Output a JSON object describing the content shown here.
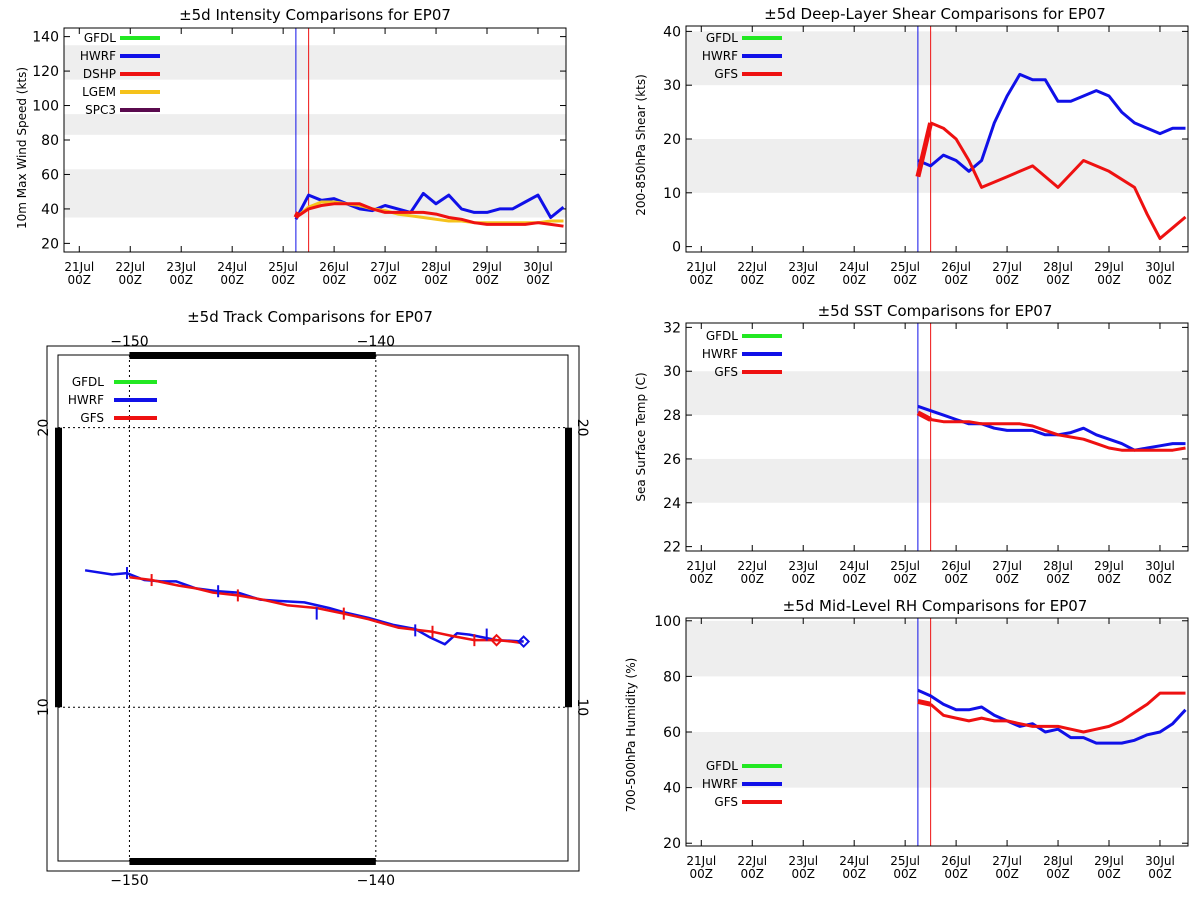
{
  "colors": {
    "gfdl": "#22e822",
    "hwrf": "#1010e8",
    "red": "#ee1111",
    "lgem": "#f5c21b",
    "spc3": "#5a0a4e",
    "band": "#eeeeee"
  },
  "time_axis": {
    "ticks": [
      {
        "day": "21Jul",
        "hour": "00Z",
        "t": 0
      },
      {
        "day": "22Jul",
        "hour": "00Z",
        "t": 1
      },
      {
        "day": "23Jul",
        "hour": "00Z",
        "t": 2
      },
      {
        "day": "24Jul",
        "hour": "00Z",
        "t": 3
      },
      {
        "day": "25Jul",
        "hour": "00Z",
        "t": 4
      },
      {
        "day": "26Jul",
        "hour": "00Z",
        "t": 5
      },
      {
        "day": "27Jul",
        "hour": "00Z",
        "t": 6
      },
      {
        "day": "28Jul",
        "hour": "00Z",
        "t": 7
      },
      {
        "day": "29Jul",
        "hour": "00Z",
        "t": 8
      },
      {
        "day": "30Jul",
        "hour": "00Z",
        "t": 9
      }
    ],
    "t_min": -0.3,
    "t_max": 9.55,
    "init_time": 4.25,
    "current_time": 4.5
  },
  "chart_data": [
    {
      "id": "intensity",
      "type": "line",
      "title": "±5d Intensity Comparisons for EP07",
      "ylabel": "10m Max Wind Speed (kts)",
      "ylim": [
        15,
        145
      ],
      "yticks": [
        20,
        40,
        60,
        80,
        100,
        120,
        140
      ],
      "bands": [
        [
          35,
          63
        ],
        [
          83,
          95
        ],
        [
          115,
          135
        ]
      ],
      "legend": [
        "GFDL",
        "HWRF",
        "DSHP",
        "LGEM",
        "SPC3"
      ],
      "series": [
        {
          "name": "GFDL",
          "color": "gfdl",
          "t": [],
          "y": []
        },
        {
          "name": "HWRF",
          "color": "hwrf",
          "t": [
            4.25,
            4.5,
            4.75,
            5.0,
            5.25,
            5.5,
            5.75,
            6.0,
            6.25,
            6.5,
            6.75,
            7.0,
            7.25,
            7.5,
            7.75,
            8.0,
            8.25,
            8.5,
            8.75,
            9.0,
            9.25,
            9.5
          ],
          "y": [
            34,
            48,
            45,
            46,
            43,
            40,
            39,
            42,
            40,
            38,
            49,
            43,
            48,
            40,
            38,
            38,
            40,
            40,
            44,
            48,
            35,
            41
          ]
        },
        {
          "name": "LGEM",
          "color": "lgem",
          "t": [
            4.25,
            4.5,
            4.75,
            5.0,
            5.25,
            5.5,
            5.75,
            6.0,
            6.25,
            6.5,
            6.75,
            7.0,
            7.25,
            7.5,
            7.75,
            8.0,
            8.25,
            8.5,
            8.75,
            9.0,
            9.25,
            9.5
          ],
          "y": [
            35,
            41,
            44,
            44,
            43,
            42,
            40,
            39,
            37,
            36,
            35,
            34,
            33,
            33,
            32,
            32,
            32,
            32,
            32,
            32,
            33,
            33
          ]
        },
        {
          "name": "DSHP",
          "color": "red",
          "t": [
            4.25,
            4.5,
            4.75,
            5.0,
            5.25,
            5.5,
            5.75,
            6.0,
            6.25,
            6.5,
            6.75,
            7.0,
            7.25,
            7.5,
            7.75,
            8.0,
            8.25,
            8.5,
            8.75,
            9.0,
            9.25,
            9.5
          ],
          "y": [
            35,
            40,
            42,
            43,
            43,
            43,
            40,
            38,
            38,
            38,
            38,
            37,
            35,
            34,
            32,
            31,
            31,
            31,
            31,
            32,
            31,
            30
          ]
        },
        {
          "name": "SPC3",
          "color": "spc3",
          "t": [],
          "y": []
        }
      ],
      "init_segment": {
        "color": "red",
        "t": [
          4.25,
          4.3
        ],
        "y": [
          35,
          38
        ]
      }
    },
    {
      "id": "shear",
      "type": "line",
      "title": "±5d Deep-Layer Shear Comparisons for EP07",
      "ylabel": "200-850hPa Shear (kts)",
      "ylim": [
        -1,
        41
      ],
      "yticks": [
        0,
        10,
        20,
        30,
        40
      ],
      "bands": [
        [
          10,
          20
        ],
        [
          30,
          40
        ]
      ],
      "legend": [
        "GFDL",
        "HWRF",
        "GFS"
      ],
      "series": [
        {
          "name": "GFDL",
          "color": "gfdl",
          "t": [],
          "y": []
        },
        {
          "name": "HWRF",
          "color": "hwrf",
          "t": [
            4.25,
            4.5,
            4.75,
            5.0,
            5.25,
            5.5,
            5.75,
            6.0,
            6.25,
            6.5,
            6.75,
            7.0,
            7.25,
            7.5,
            7.75,
            8.0,
            8.25,
            8.5,
            8.75,
            9.0,
            9.25,
            9.5
          ],
          "y": [
            16,
            15,
            17,
            16,
            14,
            16,
            23,
            28,
            32,
            31,
            31,
            27,
            27,
            28,
            29,
            28,
            25,
            23,
            22,
            21,
            22,
            22
          ]
        },
        {
          "name": "GFS",
          "color": "red",
          "t": [
            4.5,
            4.75,
            5.0,
            5.25,
            5.5,
            6.0,
            6.5,
            7.0,
            7.5,
            8.0,
            8.5,
            8.75,
            9.0,
            9.25,
            9.5
          ],
          "y": [
            23,
            22,
            20,
            16,
            11,
            13,
            15,
            11,
            16,
            14,
            11,
            6,
            1.5,
            3.5,
            5.5
          ]
        }
      ],
      "init_segment": {
        "color": "red",
        "t": [
          4.25,
          4.5
        ],
        "y": [
          13,
          23
        ]
      }
    },
    {
      "id": "sst",
      "type": "line",
      "title": "±5d SST Comparisons for EP07",
      "ylabel": "Sea Surface Temp (C)",
      "ylim": [
        21.8,
        32.2
      ],
      "yticks": [
        22,
        24,
        26,
        28,
        30,
        32
      ],
      "bands": [
        [
          24,
          26
        ],
        [
          28,
          30
        ]
      ],
      "legend": [
        "GFDL",
        "HWRF",
        "GFS"
      ],
      "series": [
        {
          "name": "GFDL",
          "color": "gfdl",
          "t": [],
          "y": []
        },
        {
          "name": "HWRF",
          "color": "hwrf",
          "t": [
            4.25,
            4.5,
            4.75,
            5.0,
            5.25,
            5.5,
            5.75,
            6.0,
            6.25,
            6.5,
            6.75,
            7.0,
            7.25,
            7.5,
            7.75,
            8.0,
            8.25,
            8.5,
            8.75,
            9.0,
            9.25,
            9.5
          ],
          "y": [
            28.4,
            28.2,
            28.0,
            27.8,
            27.6,
            27.6,
            27.4,
            27.3,
            27.3,
            27.3,
            27.1,
            27.1,
            27.2,
            27.4,
            27.1,
            26.9,
            26.7,
            26.4,
            26.5,
            26.6,
            26.7,
            26.7
          ]
        },
        {
          "name": "GFS",
          "color": "red",
          "t": [
            4.5,
            4.75,
            5.0,
            5.25,
            5.5,
            5.75,
            6.0,
            6.25,
            6.5,
            6.75,
            7.0,
            7.25,
            7.5,
            7.75,
            8.0,
            8.25,
            8.5,
            8.75,
            9.0,
            9.25,
            9.5
          ],
          "y": [
            27.8,
            27.7,
            27.7,
            27.7,
            27.6,
            27.6,
            27.6,
            27.6,
            27.5,
            27.3,
            27.1,
            27.0,
            26.9,
            26.7,
            26.5,
            26.4,
            26.4,
            26.4,
            26.4,
            26.4,
            26.5
          ]
        }
      ],
      "init_segment": {
        "color": "red",
        "t": [
          4.25,
          4.5
        ],
        "y": [
          28.1,
          27.8
        ]
      }
    },
    {
      "id": "rh",
      "type": "line",
      "title": "±5d Mid-Level RH Comparisons for EP07",
      "ylabel": "700-500hPa Humidity (%)",
      "ylim": [
        19,
        101
      ],
      "yticks": [
        20,
        40,
        60,
        80,
        100
      ],
      "bands": [
        [
          40,
          60
        ],
        [
          80,
          100
        ]
      ],
      "legend": [
        "GFDL",
        "HWRF",
        "GFS"
      ],
      "series": [
        {
          "name": "GFDL",
          "color": "gfdl",
          "t": [],
          "y": []
        },
        {
          "name": "HWRF",
          "color": "hwrf",
          "t": [
            4.25,
            4.5,
            4.75,
            5.0,
            5.25,
            5.5,
            5.75,
            6.0,
            6.25,
            6.5,
            6.75,
            7.0,
            7.25,
            7.5,
            7.75,
            8.0,
            8.25,
            8.5,
            8.75,
            9.0,
            9.25,
            9.5
          ],
          "y": [
            75,
            73,
            70,
            68,
            68,
            69,
            66,
            64,
            62,
            63,
            60,
            61,
            58,
            58,
            56,
            56,
            56,
            57,
            59,
            60,
            63,
            68
          ]
        },
        {
          "name": "GFS",
          "color": "red",
          "t": [
            4.5,
            4.75,
            5.0,
            5.25,
            5.5,
            5.75,
            6.0,
            6.25,
            6.5,
            6.75,
            7.0,
            7.25,
            7.5,
            7.75,
            8.0,
            8.25,
            8.5,
            8.75,
            9.0,
            9.25,
            9.5
          ],
          "y": [
            70,
            66,
            65,
            64,
            65,
            64,
            64,
            63,
            62,
            62,
            62,
            61,
            60,
            61,
            62,
            64,
            67,
            70,
            74,
            74,
            74
          ]
        }
      ],
      "init_segment": {
        "color": "red",
        "t": [
          4.25,
          4.5
        ],
        "y": [
          71,
          70
        ]
      }
    },
    {
      "id": "track",
      "type": "scatter",
      "title": "±5d Track Comparisons for EP07",
      "lon_range": [
        -152.9,
        -132.2
      ],
      "lat_range": [
        4.5,
        22.6
      ],
      "lon_ticks": [
        -150,
        -140
      ],
      "lat_ticks": [
        10,
        20
      ],
      "legend": [
        "GFDL",
        "HWRF",
        "GFS"
      ],
      "series": [
        {
          "name": "GFDL",
          "color": "gfdl",
          "lon": [],
          "lat": []
        },
        {
          "name": "HWRF",
          "color": "hwrf",
          "lon": [
            -151.8,
            -150.7,
            -150.1,
            -149.4,
            -148.7,
            -148.1,
            -147.3,
            -146.4,
            -145.6,
            -144.7,
            -143.9,
            -142.9,
            -141.9,
            -141.3,
            -140.3,
            -139.3,
            -138.4,
            -137.8,
            -137.2,
            -136.7,
            -136.2,
            -135.1,
            -134.0
          ],
          "lat": [
            14.9,
            14.75,
            14.8,
            14.55,
            14.5,
            14.5,
            14.25,
            14.15,
            14.1,
            13.85,
            13.8,
            13.75,
            13.55,
            13.4,
            13.2,
            12.95,
            12.8,
            12.5,
            12.25,
            12.65,
            12.6,
            12.4,
            12.35
          ]
        },
        {
          "name": "GFS",
          "color": "red",
          "lon": [
            -150.0,
            -149.1,
            -148.0,
            -147.3,
            -146.6,
            -145.6,
            -144.6,
            -143.6,
            -142.4,
            -141.3,
            -140.3,
            -139.1,
            -137.7,
            -136.9,
            -136.0,
            -135.1,
            -134.5,
            -134.1
          ],
          "lat": [
            14.65,
            14.55,
            14.35,
            14.25,
            14.1,
            14.0,
            13.85,
            13.65,
            13.55,
            13.35,
            13.15,
            12.85,
            12.7,
            12.55,
            12.4,
            12.4,
            12.35,
            12.3
          ]
        }
      ],
      "hwrf_ticks": [
        [
          -150.1,
          14.8
        ],
        [
          -146.4,
          14.15
        ],
        [
          -142.4,
          13.35
        ],
        [
          -138.4,
          12.75
        ],
        [
          -135.5,
          12.6
        ]
      ],
      "gfs_ticks": [
        [
          -149.1,
          14.55
        ],
        [
          -145.6,
          14.0
        ],
        [
          -141.3,
          13.35
        ],
        [
          -137.7,
          12.7
        ],
        [
          -136.0,
          12.4
        ]
      ],
      "hwrf_end": [
        -134.0,
        12.35
      ],
      "gfs_end": [
        -135.1,
        12.4
      ]
    }
  ]
}
